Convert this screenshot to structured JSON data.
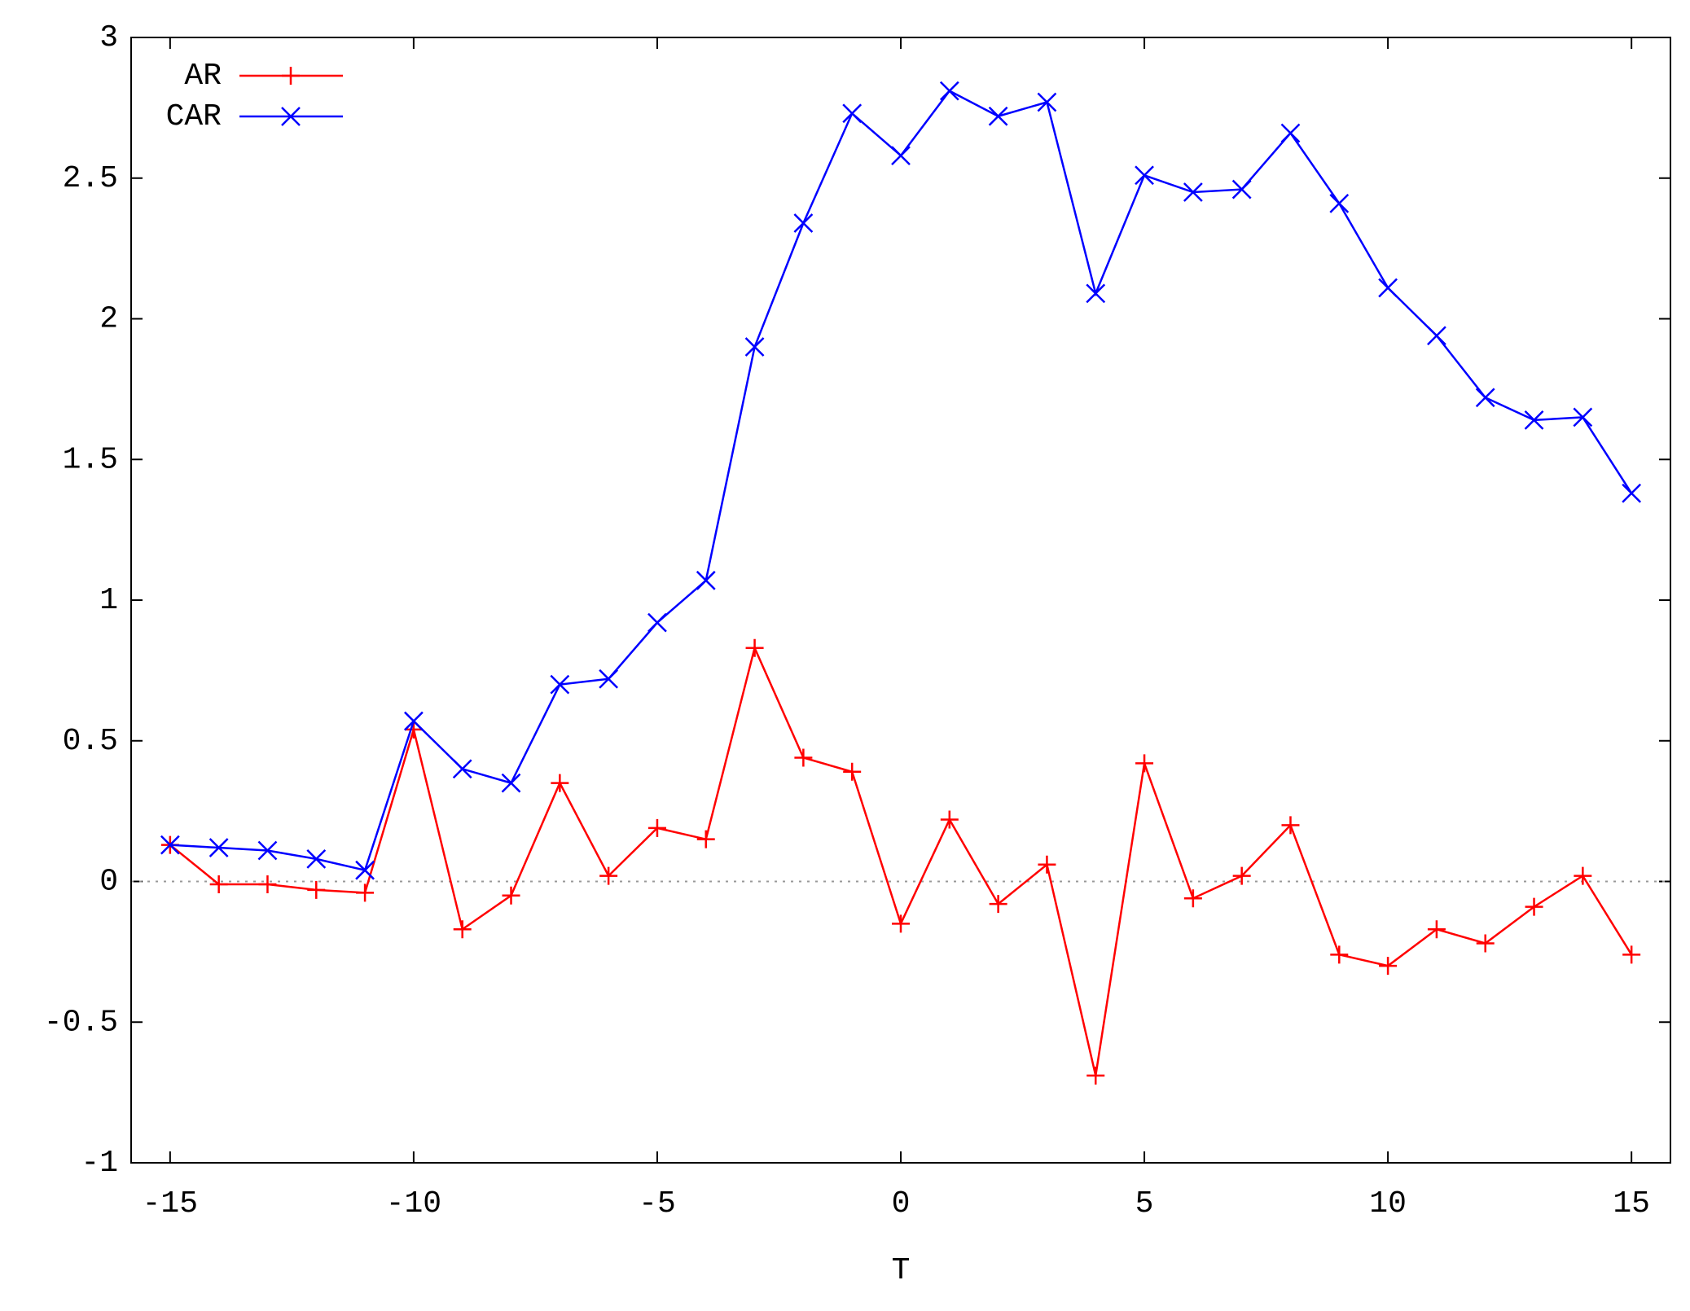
{
  "chart_data": {
    "type": "line",
    "x_label": "T",
    "x": [
      -15,
      -14,
      -13,
      -12,
      -11,
      -10,
      -9,
      -8,
      -7,
      -6,
      -5,
      -4,
      -3,
      -2,
      -1,
      0,
      1,
      2,
      3,
      4,
      5,
      6,
      7,
      8,
      9,
      10,
      11,
      12,
      13,
      14,
      15
    ],
    "series": [
      {
        "name": "AR",
        "color": "#ff0000",
        "marker": "plus",
        "values": [
          0.13,
          -0.01,
          -0.01,
          -0.03,
          -0.04,
          0.54,
          -0.17,
          -0.05,
          0.35,
          0.02,
          0.19,
          0.15,
          0.83,
          0.44,
          0.39,
          -0.15,
          0.22,
          -0.08,
          0.06,
          -0.69,
          0.42,
          -0.06,
          0.02,
          0.2,
          -0.26,
          -0.3,
          -0.17,
          -0.22,
          -0.09,
          0.02,
          -0.26
        ]
      },
      {
        "name": "CAR",
        "color": "#0000ff",
        "marker": "cross",
        "values": [
          0.13,
          0.12,
          0.11,
          0.08,
          0.04,
          0.57,
          0.4,
          0.35,
          0.7,
          0.72,
          0.92,
          1.07,
          1.9,
          2.34,
          2.73,
          2.58,
          2.81,
          2.72,
          2.77,
          2.09,
          2.51,
          2.45,
          2.46,
          2.66,
          2.41,
          2.11,
          1.94,
          1.72,
          1.64,
          1.65,
          1.38
        ]
      }
    ],
    "xlim": [
      -15.8,
      15.8
    ],
    "xticks": [
      -15,
      -10,
      -5,
      0,
      5,
      10,
      15
    ],
    "ylim": [
      -1,
      3
    ],
    "yticks": [
      -1,
      -0.5,
      0,
      0.5,
      1,
      1.5,
      2,
      2.5,
      3
    ],
    "zero_line": true,
    "legend": "top-left",
    "grid": false
  }
}
